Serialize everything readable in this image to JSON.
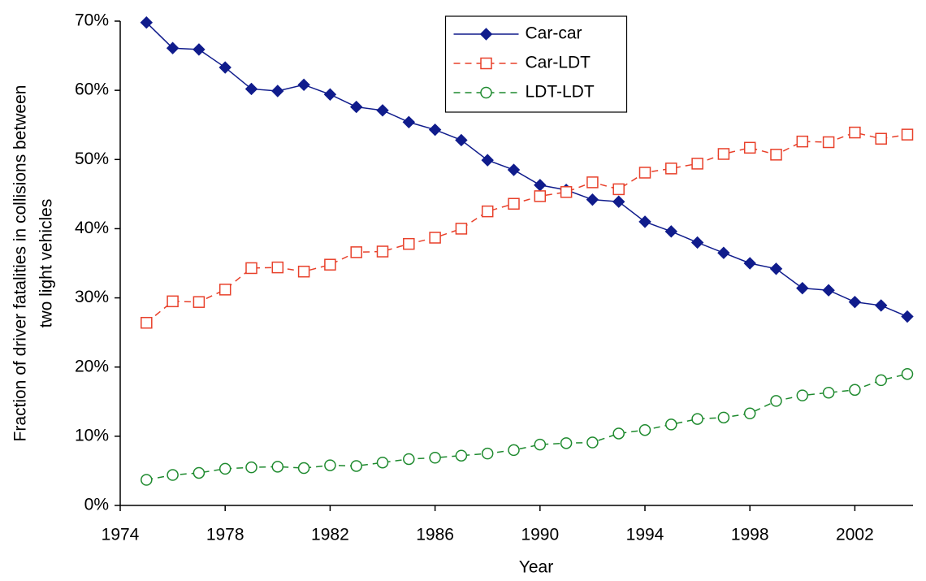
{
  "chart_data": {
    "type": "line",
    "xlabel": "Year",
    "ylabel": [
      "Fraction of driver fatalities in collisions between",
      "two light vehicles"
    ],
    "x": [
      1975,
      1976,
      1977,
      1978,
      1979,
      1980,
      1981,
      1982,
      1983,
      1984,
      1985,
      1986,
      1987,
      1988,
      1989,
      1990,
      1991,
      1992,
      1993,
      1994,
      1995,
      1996,
      1997,
      1998,
      1999,
      2000,
      2001,
      2002,
      2003,
      2004
    ],
    "series": [
      {
        "name": "Car-car",
        "color": "#101c8c",
        "marker": "diamond",
        "dashed": false,
        "values": [
          69.8,
          66.1,
          65.9,
          63.3,
          60.2,
          59.9,
          60.8,
          59.4,
          57.6,
          57.1,
          55.4,
          54.3,
          52.8,
          49.9,
          48.5,
          46.3,
          45.6,
          44.2,
          43.9,
          41.0,
          39.6,
          38.0,
          36.5,
          35.0,
          34.2,
          31.4,
          31.1,
          29.4,
          28.9,
          27.3
        ]
      },
      {
        "name": "Car-LDT",
        "color": "#e8402a",
        "marker": "square",
        "dashed": true,
        "values": [
          26.4,
          29.5,
          29.4,
          31.2,
          34.3,
          34.4,
          33.8,
          34.8,
          36.6,
          36.7,
          37.8,
          38.7,
          40.0,
          42.5,
          43.6,
          44.7,
          45.3,
          46.7,
          45.7,
          48.1,
          48.7,
          49.4,
          50.8,
          51.7,
          50.7,
          52.6,
          52.5,
          53.9,
          53.0,
          53.6
        ]
      },
      {
        "name": "LDT-LDT",
        "color": "#1e8a2e",
        "marker": "circle",
        "dashed": true,
        "values": [
          3.7,
          4.4,
          4.7,
          5.3,
          5.5,
          5.6,
          5.4,
          5.8,
          5.7,
          6.2,
          6.7,
          6.9,
          7.2,
          7.5,
          8.0,
          8.8,
          9.0,
          9.1,
          10.4,
          10.9,
          11.7,
          12.5,
          12.7,
          13.3,
          15.1,
          15.9,
          16.3,
          16.7,
          18.1,
          19.0
        ]
      }
    ],
    "xlim": [
      1974,
      2004
    ],
    "xticks": [
      1974,
      1978,
      1982,
      1986,
      1990,
      1994,
      1998,
      2002
    ],
    "ylim": [
      0,
      70
    ],
    "yticks": [
      {
        "value": 0,
        "label": "0%"
      },
      {
        "value": 10,
        "label": "10%"
      },
      {
        "value": 20,
        "label": "20%"
      },
      {
        "value": 30,
        "label": "30%"
      },
      {
        "value": 40,
        "label": "40%"
      },
      {
        "value": 50,
        "label": "50%"
      },
      {
        "value": 60,
        "label": "60%"
      },
      {
        "value": 70,
        "label": "70%"
      }
    ],
    "legend": "upper center"
  }
}
